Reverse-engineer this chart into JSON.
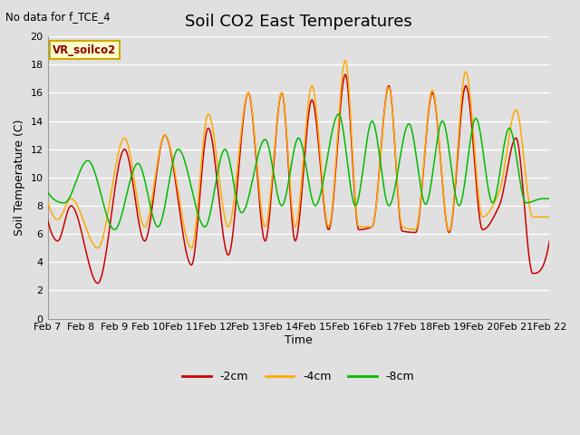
{
  "title": "Soil CO2 East Temperatures",
  "xlabel": "Time",
  "ylabel": "Soil Temperature (C)",
  "no_data_text": "No data for f_TCE_4",
  "sensor_label": "VR_soilco2",
  "legend_labels": [
    "-2cm",
    "-4cm",
    "-8cm"
  ],
  "line_colors": [
    "#cc0000",
    "#ffaa00",
    "#00bb00"
  ],
  "background_color": "#e0e0e0",
  "plot_bg_color": "#e0e0e0",
  "ylim": [
    0,
    20
  ],
  "yticks": [
    0,
    2,
    4,
    6,
    8,
    10,
    12,
    14,
    16,
    18,
    20
  ],
  "xticklabels": [
    "Feb 7",
    "Feb 8",
    "Feb 9",
    "Feb 10",
    "Feb 11",
    "Feb 12",
    "Feb 13",
    "Feb 14",
    "Feb 15",
    "Feb 16",
    "Feb 17",
    "Feb 18",
    "Feb 19",
    "Feb 20",
    "Feb 21",
    "Feb 22"
  ],
  "title_fontsize": 13,
  "axis_label_fontsize": 9,
  "tick_fontsize": 8
}
